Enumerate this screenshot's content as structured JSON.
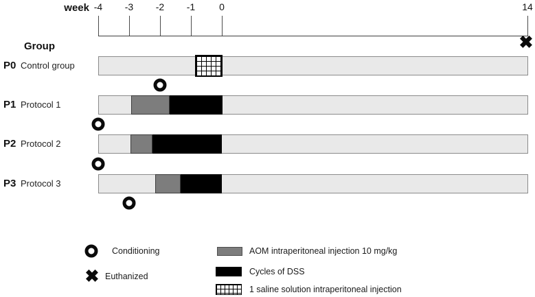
{
  "axis": {
    "label": "week",
    "ticks": [
      {
        "week": -4,
        "label": "-4"
      },
      {
        "week": -3,
        "label": "-3"
      },
      {
        "week": -2,
        "label": "-2"
      },
      {
        "week": -1,
        "label": "-1"
      },
      {
        "week": 0,
        "label": "0"
      },
      {
        "week": 14,
        "label": "14"
      }
    ]
  },
  "groups_header": "Group",
  "groups": [
    {
      "id": "P0",
      "name": "Control group",
      "segments": [
        {
          "type": "saline",
          "start_week": -0.87,
          "end_week": 0.02
        }
      ]
    },
    {
      "id": "P1",
      "name": "Protocol 1",
      "segments": [
        {
          "type": "aom",
          "start_week": -2.93,
          "end_week": -1.69
        },
        {
          "type": "dss",
          "start_week": -1.69,
          "end_week": 0.04
        }
      ]
    },
    {
      "id": "P2",
      "name": "Protocol 2",
      "segments": [
        {
          "type": "aom",
          "start_week": -2.96,
          "end_week": -2.24
        },
        {
          "type": "dss",
          "start_week": -2.24,
          "end_week": 0
        }
      ]
    },
    {
      "id": "P3",
      "name": "Protocol 3",
      "segments": [
        {
          "type": "aom",
          "start_week": -2.16,
          "end_week": -1.33
        },
        {
          "type": "dss",
          "start_week": -1.33,
          "end_week": 0
        }
      ]
    }
  ],
  "markers": {
    "conditioning": [
      {
        "group": "P1",
        "week": -2,
        "placement": "above"
      },
      {
        "group": "P2",
        "week": -4,
        "placement": "above"
      },
      {
        "group": "P3",
        "week": -4,
        "placement": "above"
      },
      {
        "group": "P3",
        "week": -3,
        "placement": "below"
      }
    ],
    "euthanized": [
      {
        "group": "P0",
        "week": 14,
        "placement": "above"
      }
    ]
  },
  "legend": {
    "conditioning_label": "Conditioning",
    "euthanized_label": "Euthanized",
    "aom_label": "AOM intraperitoneal injection 10 mg/kg",
    "dss_label": "Cycles of DSS",
    "saline_label": "1 saline solution intraperitoneal injection"
  },
  "icons": {
    "conditioning": "ring",
    "euthanized": "✖"
  },
  "colors": {
    "bar_background": "#e9e9e9",
    "bar_border": "#8a8a8a",
    "aom": "#7d7d7d",
    "dss": "#000000",
    "saline_grid": "#000000",
    "marker": "#0b0b0b"
  }
}
